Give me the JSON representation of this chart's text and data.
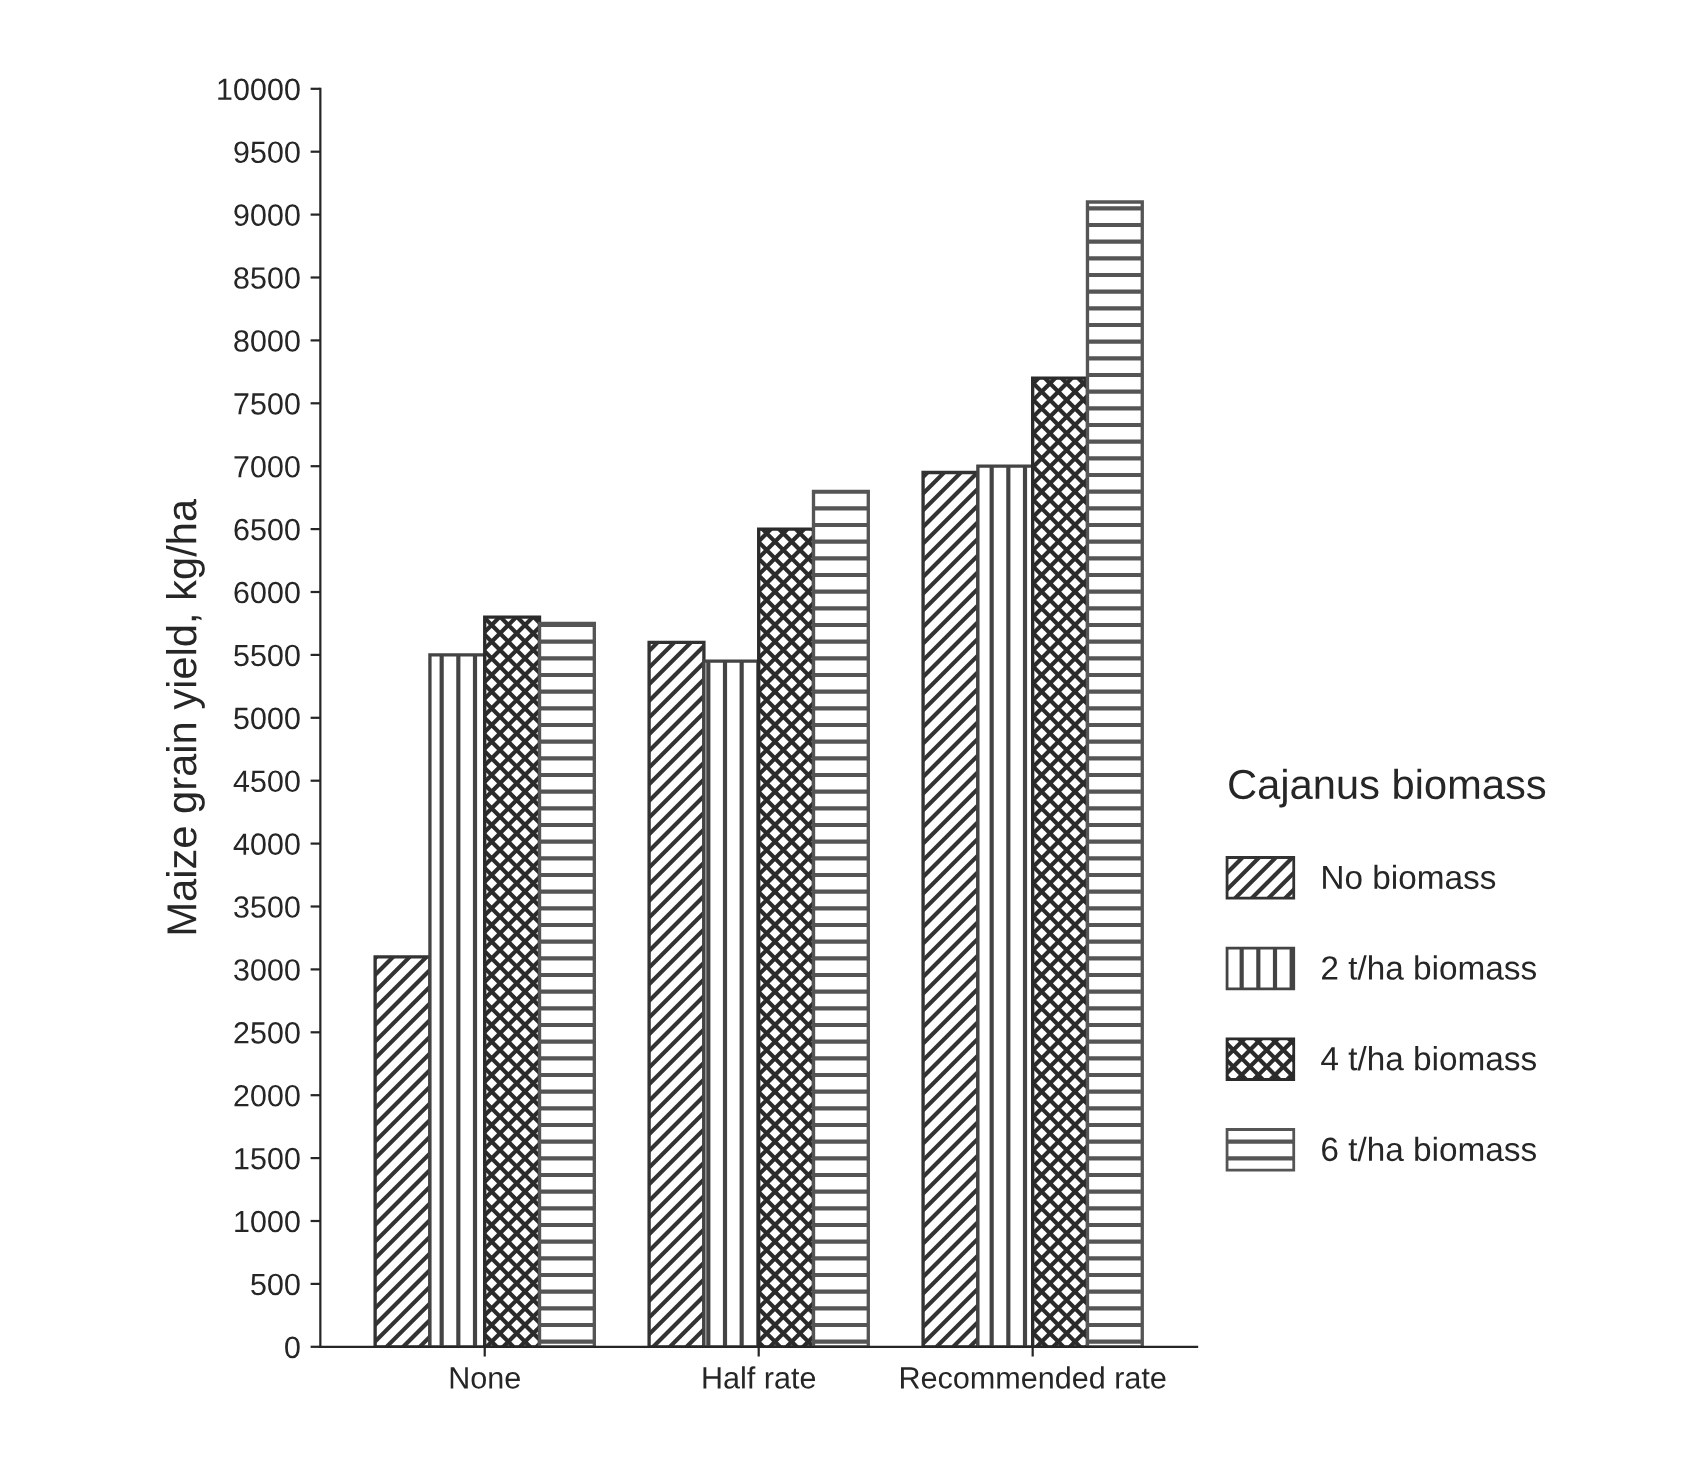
{
  "chart_data": {
    "type": "bar",
    "ylabel": "Maize grain yield, kg/ha",
    "legend_title": "Cajanus biomass",
    "categories": [
      "None",
      "Half rate",
      "Recommended rate"
    ],
    "series": [
      {
        "name": "No biomass",
        "color": "#333333",
        "values": [
          3100,
          5600,
          6950
        ]
      },
      {
        "name": "2 t/ha biomass",
        "color": "#444444",
        "values": [
          5500,
          5450,
          7000
        ]
      },
      {
        "name": "4 t/ha biomass",
        "color": "#2b2b2b",
        "values": [
          5800,
          6500,
          7700
        ]
      },
      {
        "name": "6 t/ha biomass",
        "color": "#555555",
        "values": [
          5750,
          6800,
          9100
        ]
      }
    ],
    "ylim": [
      0,
      10000
    ],
    "yticks": [
      0,
      500,
      1000,
      1500,
      2000,
      2500,
      3000,
      3500,
      4000,
      4500,
      5000,
      5500,
      6000,
      6500,
      7000,
      7500,
      8000,
      8500,
      9000,
      9500,
      10000
    ],
    "grid": false,
    "legend": "right"
  }
}
